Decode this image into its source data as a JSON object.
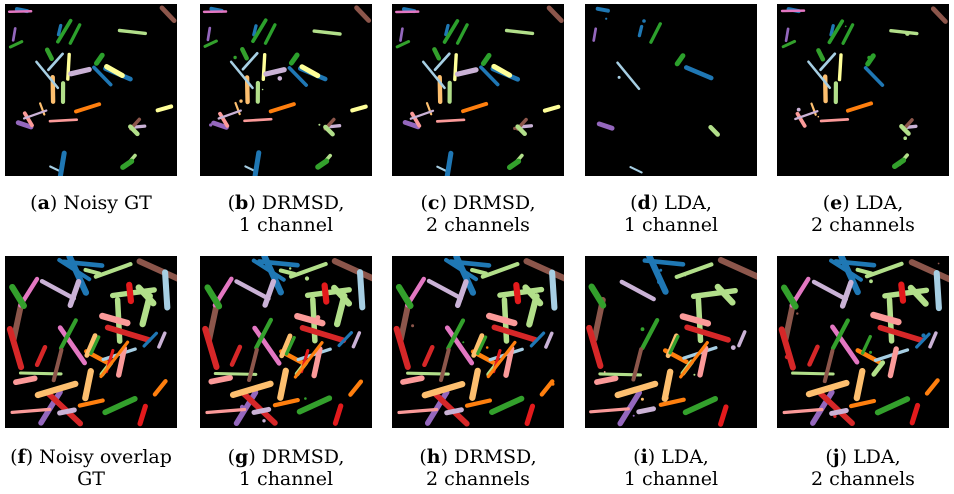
{
  "figure": {
    "panels": [
      {
        "id": "a",
        "label": "a",
        "caption_line1": "Noisy GT",
        "caption_line2": "",
        "type": "sparse",
        "seed": 11,
        "noise": 0.0,
        "missing": 0.0
      },
      {
        "id": "b",
        "label": "b",
        "caption_line1": "DRMSD,",
        "caption_line2": "1 channel",
        "type": "sparse",
        "seed": 11,
        "noise": 0.05,
        "missing": 0.0
      },
      {
        "id": "c",
        "label": "c",
        "caption_line1": "DRMSD,",
        "caption_line2": "2 channels",
        "type": "sparse",
        "seed": 11,
        "noise": 0.03,
        "missing": 0.0
      },
      {
        "id": "d",
        "label": "d",
        "caption_line1": "LDA,",
        "caption_line2": "1 channel",
        "type": "sparse",
        "seed": 11,
        "noise": 0.1,
        "missing": 0.55
      },
      {
        "id": "e",
        "label": "e",
        "caption_line1": "LDA,",
        "caption_line2": "2 channels",
        "type": "sparse",
        "seed": 11,
        "noise": 0.08,
        "missing": 0.15
      },
      {
        "id": "f",
        "label": "f",
        "caption_line1": "Noisy overlap",
        "caption_line2": "GT",
        "type": "dense",
        "seed": 29,
        "noise": 0.0,
        "missing": 0.0
      },
      {
        "id": "g",
        "label": "g",
        "caption_line1": "DRMSD,",
        "caption_line2": "1 channel",
        "type": "dense",
        "seed": 29,
        "noise": 0.05,
        "missing": 0.0
      },
      {
        "id": "h",
        "label": "h",
        "caption_line1": "DRMSD,",
        "caption_line2": "2 channels",
        "type": "dense",
        "seed": 29,
        "noise": 0.03,
        "missing": 0.0
      },
      {
        "id": "i",
        "label": "i",
        "caption_line1": "LDA,",
        "caption_line2": "1 channel",
        "type": "dense",
        "seed": 29,
        "noise": 0.12,
        "missing": 0.3
      },
      {
        "id": "j",
        "label": "j",
        "caption_line1": "LDA,",
        "caption_line2": "2 channels",
        "type": "dense",
        "seed": 29,
        "noise": 0.08,
        "missing": 0.1
      }
    ],
    "palette": [
      "#1f77b4",
      "#ff7f0e",
      "#2ca02c",
      "#d62728",
      "#9467bd",
      "#8c564b",
      "#e377c2",
      "#ffff99",
      "#a6cee3",
      "#b2df8a",
      "#fb9a99",
      "#fdbf6f",
      "#cab2d6",
      "#33a02c",
      "#1f78b4",
      "#e31a1c"
    ],
    "background_color": "#000000"
  }
}
